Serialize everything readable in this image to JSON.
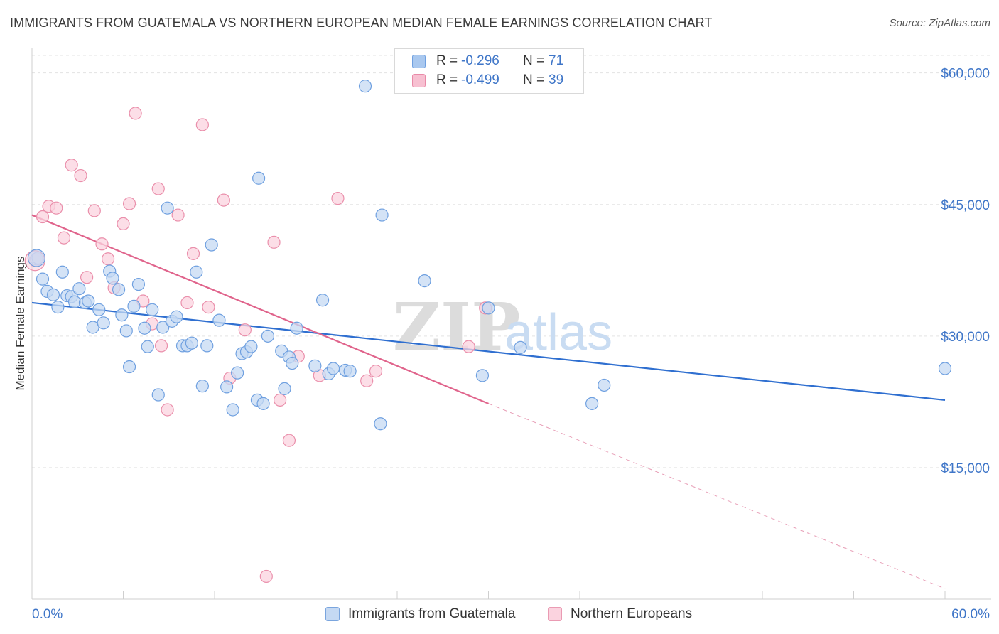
{
  "title": "IMMIGRANTS FROM GUATEMALA VS NORTHERN EUROPEAN MEDIAN FEMALE EARNINGS CORRELATION CHART",
  "source": "Source: ZipAtlas.com",
  "watermark": {
    "zip": "ZIP",
    "atlas": "atlas"
  },
  "stats": [
    {
      "r_label": "R =",
      "r_value": "-0.296",
      "n_label": "N =",
      "n_value": "71",
      "color": "#a9c8ef",
      "border": "#6fa0e0"
    },
    {
      "r_label": "R =",
      "r_value": "-0.499",
      "n_label": "N =",
      "n_value": "39",
      "color": "#f7c0d1",
      "border": "#e98aa8"
    }
  ],
  "legend": [
    {
      "label": "Immigrants from Guatemala",
      "color": "#c5d9f3",
      "border": "#7aa5de"
    },
    {
      "label": "Northern Europeans",
      "color": "#fbd3df",
      "border": "#ea9bb3"
    }
  ],
  "chart_data": {
    "type": "scatter",
    "title": "IMMIGRANTS FROM GUATEMALA VS NORTHERN EUROPEAN MEDIAN FEMALE EARNINGS CORRELATION CHART",
    "xlabel": "",
    "ylabel": "Median Female Earnings",
    "xlim": [
      0,
      60
    ],
    "ylim": [
      0,
      62000
    ],
    "x_tick_labels": [
      "0.0%",
      "60.0%"
    ],
    "y_ticks": [
      15000,
      30000,
      45000,
      60000
    ],
    "y_tick_labels": [
      "$15,000",
      "$30,000",
      "$45,000",
      "$60,000"
    ],
    "grid": true,
    "series": [
      {
        "name": "Immigrants from Guatemala",
        "color": "#6fa0e0",
        "fill": "#c5d9f3",
        "points": [
          [
            0.3,
            38800
          ],
          [
            0.4,
            38900
          ],
          [
            0.7,
            36500
          ],
          [
            1.0,
            35100
          ],
          [
            1.4,
            34700
          ],
          [
            1.7,
            33300
          ],
          [
            2.0,
            37300
          ],
          [
            2.3,
            34600
          ],
          [
            2.6,
            34500
          ],
          [
            2.8,
            33900
          ],
          [
            3.1,
            35400
          ],
          [
            3.5,
            33800
          ],
          [
            3.7,
            34000
          ],
          [
            4.0,
            31000
          ],
          [
            4.4,
            33000
          ],
          [
            4.7,
            31500
          ],
          [
            5.1,
            37400
          ],
          [
            5.3,
            36600
          ],
          [
            5.7,
            35300
          ],
          [
            5.9,
            32400
          ],
          [
            6.2,
            30600
          ],
          [
            6.4,
            26500
          ],
          [
            6.7,
            33400
          ],
          [
            7.0,
            35900
          ],
          [
            7.4,
            30900
          ],
          [
            7.6,
            28800
          ],
          [
            7.9,
            33000
          ],
          [
            8.3,
            23300
          ],
          [
            8.6,
            31000
          ],
          [
            8.9,
            44600
          ],
          [
            9.2,
            31700
          ],
          [
            9.5,
            32200
          ],
          [
            9.9,
            28900
          ],
          [
            10.2,
            28900
          ],
          [
            10.5,
            29200
          ],
          [
            10.8,
            37300
          ],
          [
            11.2,
            24300
          ],
          [
            11.5,
            28900
          ],
          [
            11.8,
            40400
          ],
          [
            12.3,
            31800
          ],
          [
            12.8,
            24200
          ],
          [
            13.2,
            21600
          ],
          [
            13.5,
            25800
          ],
          [
            13.8,
            28000
          ],
          [
            14.1,
            28200
          ],
          [
            14.4,
            28800
          ],
          [
            14.8,
            22700
          ],
          [
            14.9,
            48000
          ],
          [
            15.2,
            22300
          ],
          [
            15.5,
            30000
          ],
          [
            16.4,
            28300
          ],
          [
            16.6,
            24000
          ],
          [
            16.9,
            27600
          ],
          [
            17.1,
            26900
          ],
          [
            17.4,
            30900
          ],
          [
            18.6,
            26600
          ],
          [
            19.1,
            34100
          ],
          [
            19.5,
            25700
          ],
          [
            19.8,
            26300
          ],
          [
            20.6,
            26100
          ],
          [
            20.9,
            26000
          ],
          [
            21.9,
            58500
          ],
          [
            22.9,
            20000
          ],
          [
            23.0,
            43800
          ],
          [
            25.8,
            36300
          ],
          [
            29.6,
            25500
          ],
          [
            30.0,
            33200
          ],
          [
            32.1,
            28700
          ],
          [
            36.8,
            22300
          ],
          [
            37.6,
            24400
          ],
          [
            60.0,
            26300
          ]
        ]
      },
      {
        "name": "Northern Europeans",
        "color": "#ea8fab",
        "fill": "#fbd3df",
        "points": [
          [
            0.2,
            38600
          ],
          [
            0.7,
            43600
          ],
          [
            1.1,
            44800
          ],
          [
            1.6,
            44600
          ],
          [
            2.1,
            41200
          ],
          [
            2.6,
            49500
          ],
          [
            3.2,
            48300
          ],
          [
            3.6,
            36700
          ],
          [
            4.1,
            44300
          ],
          [
            4.6,
            40500
          ],
          [
            5.0,
            38800
          ],
          [
            5.4,
            35500
          ],
          [
            6.0,
            42800
          ],
          [
            6.4,
            45100
          ],
          [
            6.8,
            55400
          ],
          [
            7.3,
            34000
          ],
          [
            7.9,
            31400
          ],
          [
            8.3,
            46800
          ],
          [
            8.5,
            28900
          ],
          [
            8.9,
            21600
          ],
          [
            9.6,
            43800
          ],
          [
            10.2,
            33800
          ],
          [
            10.6,
            39400
          ],
          [
            11.2,
            54100
          ],
          [
            11.6,
            33300
          ],
          [
            12.6,
            45500
          ],
          [
            13.0,
            25200
          ],
          [
            14.0,
            30700
          ],
          [
            15.9,
            40700
          ],
          [
            16.3,
            22700
          ],
          [
            16.9,
            18100
          ],
          [
            17.5,
            27700
          ],
          [
            18.9,
            25500
          ],
          [
            20.1,
            45700
          ],
          [
            22.0,
            24900
          ],
          [
            22.6,
            26000
          ],
          [
            28.7,
            28800
          ],
          [
            29.8,
            33200
          ],
          [
            15.4,
            2600
          ]
        ]
      }
    ],
    "trend_lines": [
      {
        "series": "Immigrants from Guatemala",
        "x": [
          0,
          60
        ],
        "y": [
          33800,
          22700
        ]
      },
      {
        "series": "Northern Europeans",
        "x": [
          0,
          30
        ],
        "y": [
          43800,
          22300
        ],
        "dashed_extension": {
          "x": [
            30,
            60
          ],
          "y": [
            22300,
            1200
          ]
        }
      }
    ]
  }
}
